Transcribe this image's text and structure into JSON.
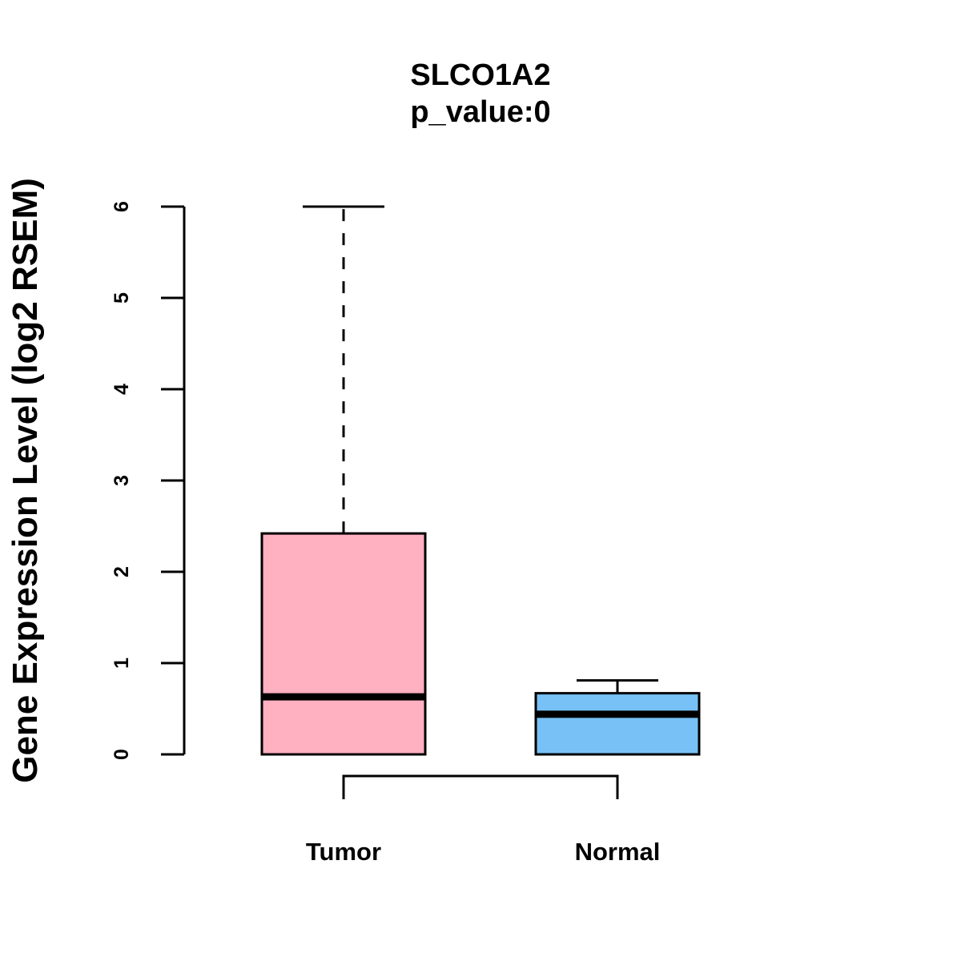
{
  "chart_data": {
    "type": "boxplot",
    "title": "SLCO1A2",
    "subtitle": "p_value:0",
    "xlabel": "",
    "ylabel": "Gene Expression Level (log2 RSEM)",
    "ylim": [
      0,
      6
    ],
    "yticks": [
      0,
      1,
      2,
      3,
      4,
      5,
      6
    ],
    "categories": [
      "Tumor",
      "Normal"
    ],
    "boxes": [
      {
        "name": "Tumor",
        "min": 0,
        "q1": 0,
        "median": 0.63,
        "q3": 2.42,
        "max": 6.0,
        "color": "#FFB0C1"
      },
      {
        "name": "Normal",
        "min": 0,
        "q1": 0,
        "median": 0.44,
        "q3": 0.67,
        "max": 0.81,
        "color": "#77C1F6"
      }
    ],
    "comparison_bracket": [
      "Tumor",
      "Normal"
    ],
    "grid": false
  }
}
